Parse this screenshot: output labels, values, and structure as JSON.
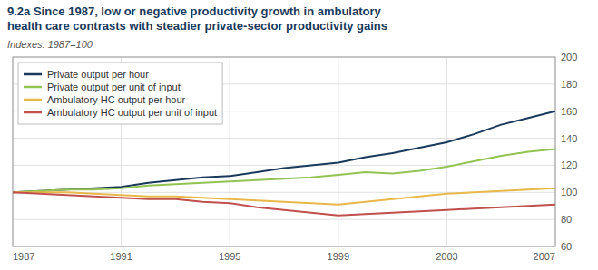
{
  "chart_data": {
    "type": "line",
    "title": "9.2a Since 1987, low or negative productivity growth in ambulatory\nhealth care contrasts with steadier private-sector productivity gains",
    "subtitle": "Indexes: 1987=100",
    "x": [
      1987,
      1988,
      1989,
      1990,
      1991,
      1992,
      1993,
      1994,
      1995,
      1996,
      1997,
      1998,
      1999,
      2000,
      2001,
      2002,
      2003,
      2004,
      2005,
      2006,
      2007
    ],
    "series": [
      {
        "name": "Private output per hour",
        "color": "#1a3a5c",
        "values": [
          100,
          101,
          102,
          103,
          104,
          107,
          109,
          111,
          112,
          115,
          118,
          120,
          122,
          126,
          129,
          133,
          137,
          143,
          150,
          155,
          160
        ]
      },
      {
        "name": "Private output per unit of input",
        "color": "#92c353",
        "values": [
          100,
          101,
          102,
          102,
          103,
          105,
          106,
          107,
          108,
          109,
          110,
          111,
          113,
          115,
          114,
          116,
          119,
          123,
          127,
          130,
          132
        ]
      },
      {
        "name": "Ambulatory HC output per hour",
        "color": "#e8b84b",
        "values": [
          100,
          100,
          100,
          99,
          98,
          97,
          97,
          96,
          95,
          94,
          93,
          92,
          91,
          93,
          95,
          97,
          99,
          100,
          101,
          102,
          103
        ]
      },
      {
        "name": "Ambulatory HC output per unit of input",
        "color": "#c0504d",
        "values": [
          100,
          99,
          98,
          97,
          96,
          95,
          95,
          93,
          92,
          89,
          87,
          85,
          83,
          84,
          85,
          86,
          87,
          88,
          89,
          90,
          91
        ]
      }
    ],
    "xlim": [
      1987,
      2007
    ],
    "xticks": [
      1987,
      1991,
      1995,
      1999,
      2003,
      2007
    ],
    "ylim": [
      60,
      200
    ],
    "yticks": [
      60,
      80,
      100,
      120,
      140,
      160,
      180,
      200
    ],
    "grid": true,
    "legend": "upper left"
  }
}
